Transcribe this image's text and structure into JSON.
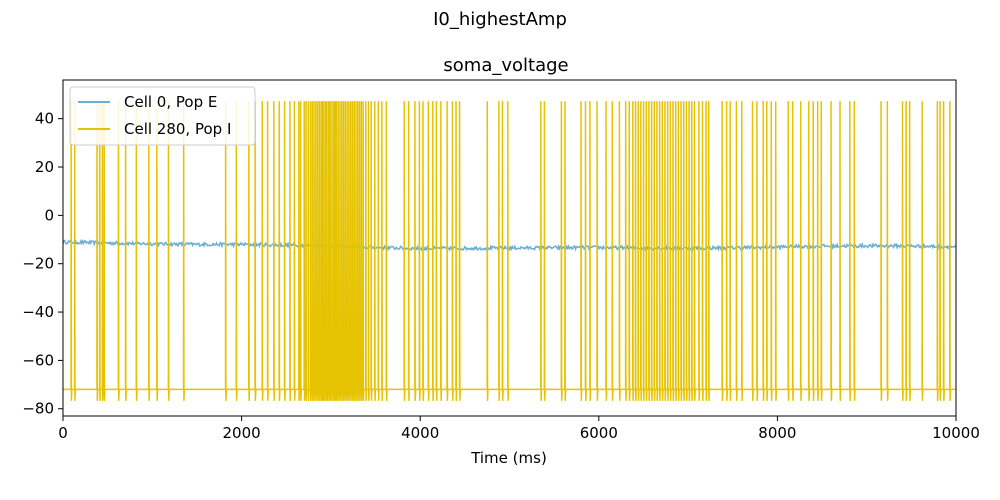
{
  "figure_title": "I0_highestAmp",
  "chart_data": {
    "type": "line",
    "title": "soma_voltage",
    "xlabel": "Time (ms)",
    "ylabel": "",
    "xlim": [
      0,
      10000
    ],
    "ylim": [
      -83,
      56
    ],
    "x_ticks": [
      0,
      2000,
      4000,
      6000,
      8000,
      10000
    ],
    "y_ticks": [
      -80,
      -60,
      -40,
      -20,
      0,
      20,
      40
    ],
    "grid": false,
    "legend_position": "upper-left",
    "series": [
      {
        "name": "Cell 0, Pop E",
        "color": "#6baed6",
        "noise": 0.7,
        "x": [
          0,
          500,
          1000,
          1500,
          2000,
          2500,
          3000,
          3500,
          4000,
          4500,
          5000,
          5500,
          6000,
          6500,
          7000,
          7500,
          8000,
          8500,
          9000,
          9500,
          10000
        ],
        "y": [
          -11,
          -11.4,
          -11.8,
          -12,
          -12,
          -12.3,
          -12.6,
          -13.3,
          -13.7,
          -13.6,
          -13.5,
          -13.4,
          -13.3,
          -13.5,
          -13.6,
          -13.4,
          -13.1,
          -12.7,
          -12.6,
          -12.7,
          -13
        ]
      },
      {
        "name": "Cell 280, Pop I",
        "color": "#e6c300",
        "rest_voltage": -72,
        "spike_peak": 47,
        "spike_trough": -76.5,
        "spike_times_ms": [
          90,
          130,
          380,
          410,
          440,
          460,
          620,
          700,
          820,
          960,
          1050,
          1180,
          1350,
          1820,
          1940,
          2080,
          2150,
          2230,
          2290,
          2360,
          2420,
          2480,
          2540,
          2590,
          2640,
          2660,
          2700,
          2720,
          2745,
          2770,
          2790,
          2810,
          2830,
          2850,
          2870,
          2890,
          2905,
          2920,
          2940,
          2955,
          2975,
          2990,
          3010,
          3030,
          3045,
          3060,
          3080,
          3100,
          3120,
          3140,
          3160,
          3180,
          3200,
          3220,
          3240,
          3260,
          3280,
          3300,
          3320,
          3340,
          3360,
          3390,
          3420,
          3450,
          3490,
          3530,
          3570,
          3620,
          3820,
          3870,
          3940,
          3990,
          4030,
          4090,
          4140,
          4180,
          4230,
          4300,
          4360,
          4400,
          4440,
          4750,
          4880,
          4920,
          4980,
          5350,
          5390,
          5580,
          5620,
          5800,
          5850,
          5900,
          5980,
          6080,
          6150,
          6230,
          6300,
          6340,
          6380,
          6410,
          6440,
          6470,
          6500,
          6530,
          6560,
          6590,
          6620,
          6650,
          6680,
          6710,
          6740,
          6770,
          6800,
          6830,
          6860,
          6890,
          6920,
          6950,
          6980,
          7010,
          7040,
          7070,
          7120,
          7160,
          7200,
          7230,
          7380,
          7430,
          7470,
          7540,
          7600,
          7720,
          7770,
          7840,
          7880,
          7930,
          7980,
          8120,
          8170,
          8260,
          8350,
          8400,
          8450,
          8490,
          8600,
          8700,
          8810,
          8860,
          9160,
          9230,
          9400,
          9440,
          9480,
          9620,
          9790,
          9820,
          9860,
          9930
        ]
      }
    ]
  }
}
